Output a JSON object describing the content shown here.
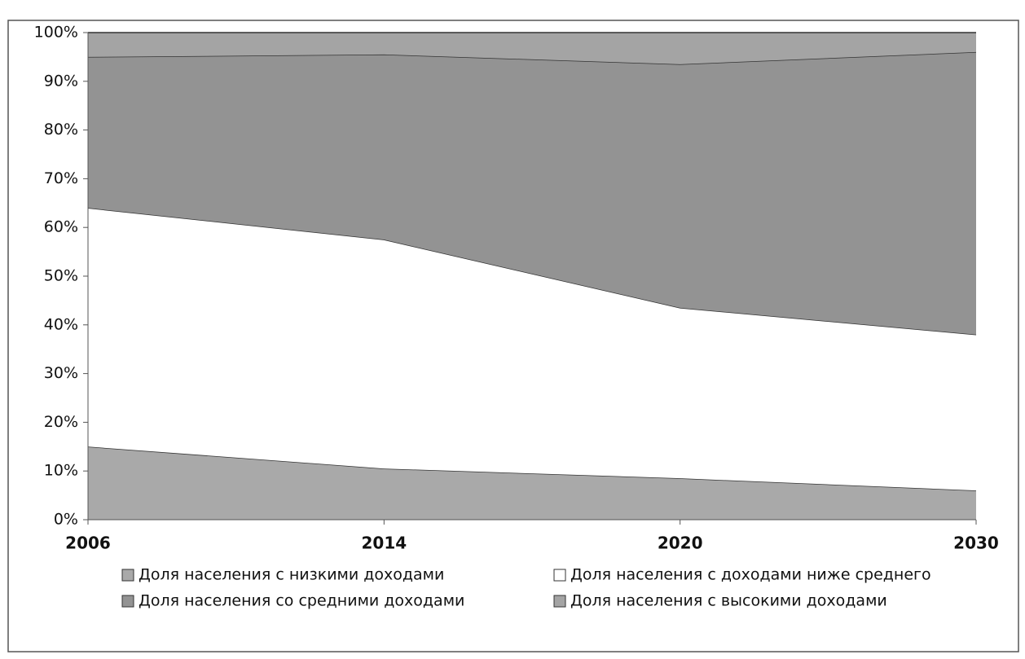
{
  "chart_data": {
    "type": "stacked_area",
    "categories": [
      "2006",
      "2014",
      "2020",
      "2030"
    ],
    "series": [
      {
        "name": "Доля населения с низкими доходами",
        "color": "#a9a9a9",
        "values": [
          15,
          10.5,
          8.5,
          6
        ]
      },
      {
        "name": "Доля населения с доходами ниже среднего",
        "color": "#ffffff",
        "values": [
          49,
          47,
          35,
          32
        ]
      },
      {
        "name": "Доля населения со средними доходами",
        "color": "#939393",
        "values": [
          31,
          38,
          50,
          58
        ]
      },
      {
        "name": "Доля населения с высокими доходами",
        "color": "#a4a4a4",
        "values": [
          5,
          4.5,
          6.5,
          4
        ]
      }
    ],
    "ylim": [
      0,
      100
    ],
    "yticks": [
      {
        "value": 0,
        "label": "0%"
      },
      {
        "value": 10,
        "label": "10%"
      },
      {
        "value": 20,
        "label": "20%"
      },
      {
        "value": 30,
        "label": "30%"
      },
      {
        "value": 40,
        "label": "40%"
      },
      {
        "value": 50,
        "label": "50%"
      },
      {
        "value": 60,
        "label": "60%"
      },
      {
        "value": 70,
        "label": "70%"
      },
      {
        "value": 80,
        "label": "80%"
      },
      {
        "value": 90,
        "label": "90%"
      },
      {
        "value": 100,
        "label": "100%"
      }
    ],
    "legend": "bottom"
  }
}
